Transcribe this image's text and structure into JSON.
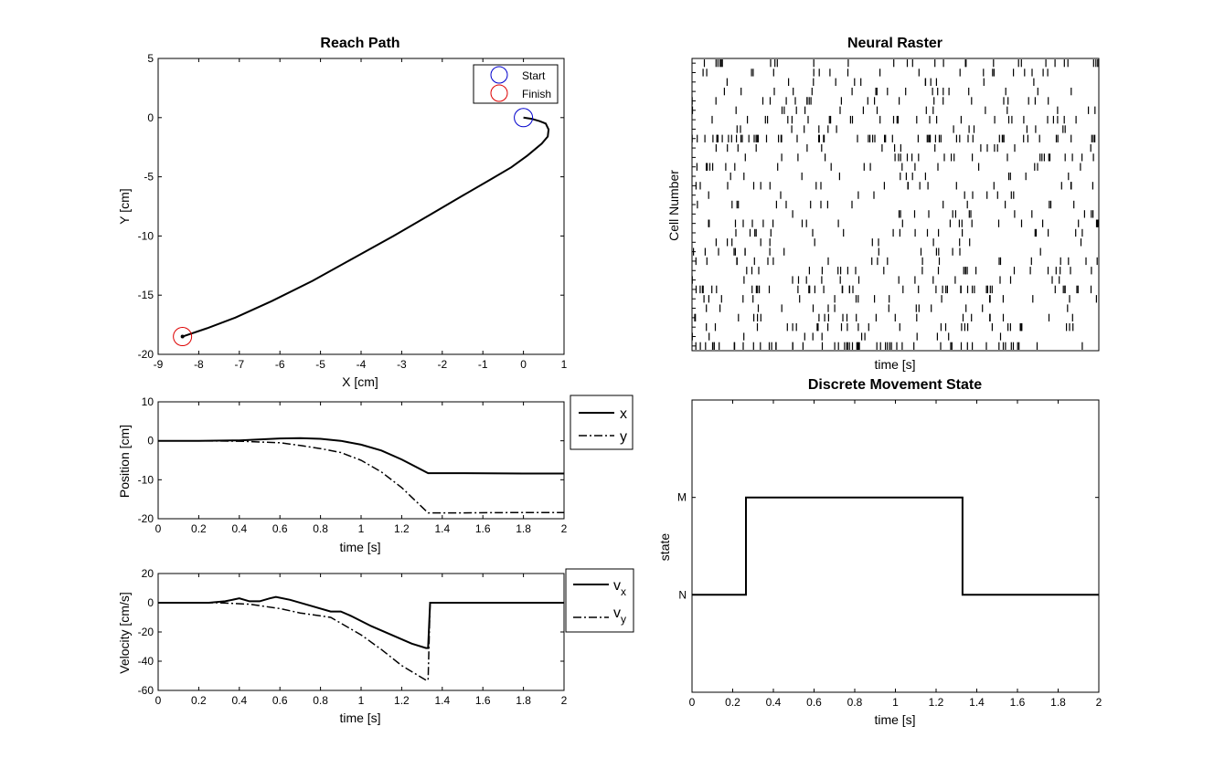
{
  "chart_data": [
    {
      "type": "line",
      "title": "Reach Path",
      "xlabel": "X [cm]",
      "ylabel": "Y [cm]",
      "xlim": [
        -9,
        1
      ],
      "ylim": [
        -20,
        5
      ],
      "xticks": [
        "-9",
        "-8",
        "-7",
        "-6",
        "-5",
        "-4",
        "-3",
        "-2",
        "-1",
        "0",
        "1"
      ],
      "yticks": [
        "-20",
        "-15",
        "-10",
        "-5",
        "0",
        "5"
      ],
      "legend": {
        "position": "top-right",
        "entries": [
          "Start",
          "Finish"
        ]
      },
      "start": {
        "x": 0,
        "y": 0
      },
      "finish": {
        "x": -8.4,
        "y": -18.5
      },
      "path": {
        "x": [
          0,
          0.2,
          0.4,
          0.55,
          0.62,
          0.6,
          0.45,
          0.1,
          -0.3,
          -0.8,
          -1.5,
          -2.3,
          -3.2,
          -4.2,
          -5.2,
          -6.2,
          -7.1,
          -7.8,
          -8.4
        ],
        "y": [
          0,
          -0.1,
          -0.3,
          -0.5,
          -1.0,
          -1.6,
          -2.2,
          -3.2,
          -4.2,
          -5.2,
          -6.6,
          -8.2,
          -10.0,
          -11.9,
          -13.8,
          -15.5,
          -16.9,
          -17.8,
          -18.5
        ]
      }
    },
    {
      "type": "line",
      "title": "",
      "xlabel": "time [s]",
      "ylabel": "Position [cm]",
      "xlim": [
        0,
        2
      ],
      "ylim": [
        -20,
        10
      ],
      "xticks": [
        "0",
        "0.2",
        "0.4",
        "0.6",
        "0.8",
        "1",
        "1.2",
        "1.4",
        "1.6",
        "1.8",
        "2"
      ],
      "yticks": [
        "-20",
        "-10",
        "0",
        "10"
      ],
      "legend": {
        "position": "outside-right",
        "entries": [
          "x",
          "y"
        ]
      },
      "x": [
        0,
        0.2,
        0.4,
        0.6,
        0.7,
        0.8,
        0.9,
        1.0,
        1.1,
        1.2,
        1.33,
        1.5,
        1.8,
        2.0
      ],
      "series": [
        {
          "name": "x",
          "values": [
            0,
            0,
            0.1,
            0.6,
            0.7,
            0.5,
            0.0,
            -1.0,
            -2.5,
            -4.8,
            -8.3,
            -8.3,
            -8.4,
            -8.4
          ]
        },
        {
          "name": "y",
          "values": [
            0,
            0,
            -0.1,
            -0.5,
            -1.2,
            -2.0,
            -3.0,
            -5.0,
            -8.0,
            -12.0,
            -18.5,
            -18.5,
            -18.4,
            -18.4
          ]
        }
      ]
    },
    {
      "type": "line",
      "title": "",
      "xlabel": "time [s]",
      "ylabel": "Velocity [cm/s]",
      "xlim": [
        0,
        2
      ],
      "ylim": [
        -60,
        20
      ],
      "xticks": [
        "0",
        "0.2",
        "0.4",
        "0.6",
        "0.8",
        "1",
        "1.2",
        "1.4",
        "1.6",
        "1.8",
        "2"
      ],
      "yticks": [
        "-60",
        "-40",
        "-20",
        "0",
        "20"
      ],
      "legend": {
        "position": "outside-right",
        "entries": [
          "v",
          "v"
        ],
        "subscripts": [
          "x",
          "y"
        ]
      },
      "series": [
        {
          "name": "vx",
          "x": [
            0,
            0.25,
            0.33,
            0.4,
            0.45,
            0.5,
            0.55,
            0.58,
            0.65,
            0.75,
            0.85,
            0.9,
            0.95,
            1.05,
            1.15,
            1.25,
            1.32,
            1.33,
            1.34,
            2.0
          ],
          "values": [
            0,
            0,
            1,
            3,
            1,
            1,
            3,
            4,
            2,
            -2,
            -6,
            -6,
            -9,
            -16,
            -22,
            -28,
            -31,
            -31,
            0,
            0
          ]
        },
        {
          "name": "vy",
          "x": [
            0,
            0.3,
            0.45,
            0.5,
            0.6,
            0.7,
            0.8,
            0.85,
            0.9,
            1.0,
            1.1,
            1.2,
            1.32,
            1.33,
            1.34,
            2.0
          ],
          "values": [
            0,
            0,
            -1,
            -2,
            -4,
            -7,
            -9,
            -10,
            -14,
            -22,
            -32,
            -43,
            -53,
            -53,
            0,
            0
          ]
        }
      ]
    },
    {
      "type": "raster",
      "title": "Neural Raster",
      "xlabel": "time [s]",
      "ylabel": "Cell Number",
      "xlim": [
        0,
        2
      ],
      "rows": 31,
      "seed": 7,
      "row_rates": [
        14,
        10,
        6,
        9,
        11,
        8,
        14,
        7,
        30,
        8,
        12,
        9,
        6,
        10,
        5,
        8,
        7,
        11,
        9,
        6,
        8,
        10,
        12,
        8,
        22,
        9,
        7,
        11,
        14,
        6,
        28
      ]
    },
    {
      "type": "line",
      "title": "Discrete Movement State",
      "xlabel": "time [s]",
      "ylabel": "state",
      "xlim": [
        0,
        2
      ],
      "xticks": [
        "0",
        "0.2",
        "0.4",
        "0.6",
        "0.8",
        "1",
        "1.2",
        "1.4",
        "1.6",
        "1.8",
        "2"
      ],
      "yticks": [
        "N",
        "M"
      ],
      "x": [
        0,
        0.265,
        0.265,
        1.33,
        1.33,
        2.0
      ],
      "state": [
        "N",
        "N",
        "M",
        "M",
        "N",
        "N"
      ]
    }
  ]
}
